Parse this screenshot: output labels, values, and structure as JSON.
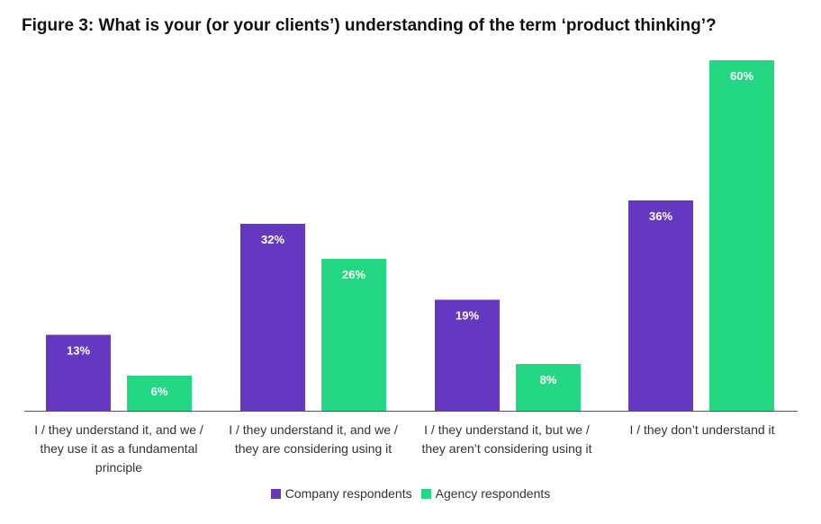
{
  "chart_data": {
    "type": "bar",
    "title": "Figure 3: What is your (or your clients’) understanding of the term ‘product thinking’?",
    "categories": [
      "I / they understand it, and we / they use it as a fundamental principle",
      "I / they understand it, and we / they are considering using it",
      "I / they understand it, but we / they aren’t considering using it",
      "I / they don’t understand it"
    ],
    "series": [
      {
        "name": "Company respondents",
        "color": "#6438c0",
        "values": [
          13,
          32,
          19,
          36
        ],
        "labels": [
          "13%",
          "32%",
          "19%",
          "36%"
        ]
      },
      {
        "name": "Agency respondents",
        "color": "#23d783",
        "values": [
          6,
          26,
          8,
          60
        ],
        "labels": [
          "6%",
          "26%",
          "8%",
          "60%"
        ]
      }
    ],
    "ylim": [
      0,
      60
    ],
    "grid": false,
    "legend_position": "bottom"
  }
}
